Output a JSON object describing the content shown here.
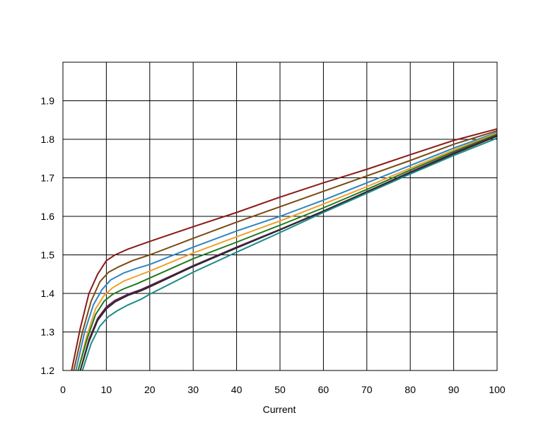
{
  "chart_data": {
    "type": "line",
    "title": "",
    "xlabel": "Current",
    "ylabel": "",
    "xlim": [
      0,
      100
    ],
    "ylim": [
      1.2,
      2.0
    ],
    "xticks": [
      0,
      10,
      20,
      30,
      40,
      50,
      60,
      70,
      80,
      90,
      100
    ],
    "yticks": [
      1.2,
      1.3,
      1.4,
      1.5,
      1.6,
      1.7,
      1.8,
      1.9
    ],
    "ytick_labels": [
      "1.2",
      "1.3",
      "1.4",
      "1.5",
      "1.6",
      "1.7",
      "1.8",
      "1.9"
    ],
    "xtick_labels": [
      "0",
      "10",
      "20",
      "30",
      "40",
      "50",
      "60",
      "70",
      "80",
      "90",
      "100"
    ],
    "grid": true,
    "legend": "none",
    "series": [
      {
        "color": "#8B1A1A",
        "x": [
          2,
          4,
          6,
          8,
          10,
          12,
          15,
          20,
          30,
          40,
          50,
          60,
          70,
          80,
          90,
          100
        ],
        "values": [
          1.2,
          1.31,
          1.4,
          1.45,
          1.485,
          1.5,
          1.515,
          1.535,
          1.573,
          1.61,
          1.65,
          1.687,
          1.722,
          1.76,
          1.797,
          1.827
        ]
      },
      {
        "color": "#7B4A12",
        "x": [
          2.5,
          4.5,
          6.5,
          8.5,
          10.5,
          13,
          16,
          20,
          30,
          40,
          50,
          60,
          70,
          80,
          90,
          100
        ],
        "values": [
          1.2,
          1.3,
          1.38,
          1.43,
          1.455,
          1.47,
          1.485,
          1.5,
          1.543,
          1.585,
          1.625,
          1.665,
          1.705,
          1.745,
          1.787,
          1.822
        ]
      },
      {
        "color": "#2E86C1",
        "x": [
          3,
          5,
          7,
          9,
          11,
          14,
          17,
          20,
          30,
          40,
          50,
          60,
          70,
          80,
          90,
          100
        ],
        "values": [
          1.2,
          1.3,
          1.37,
          1.41,
          1.435,
          1.453,
          1.465,
          1.475,
          1.52,
          1.562,
          1.6,
          1.642,
          1.687,
          1.732,
          1.777,
          1.818
        ]
      },
      {
        "color": "#F0A030",
        "x": [
          3.5,
          5.5,
          7.5,
          9.5,
          11.5,
          14,
          17,
          20,
          30,
          40,
          50,
          60,
          70,
          80,
          90,
          100
        ],
        "values": [
          1.2,
          1.29,
          1.36,
          1.395,
          1.415,
          1.432,
          1.445,
          1.458,
          1.505,
          1.547,
          1.588,
          1.632,
          1.677,
          1.725,
          1.772,
          1.816
        ]
      },
      {
        "color": "#1E7A1E",
        "x": [
          3.5,
          5.5,
          7.5,
          9.5,
          11.5,
          14,
          17,
          20,
          30,
          40,
          50,
          60,
          70,
          80,
          90,
          100
        ],
        "values": [
          1.2,
          1.28,
          1.345,
          1.38,
          1.398,
          1.412,
          1.425,
          1.44,
          1.49,
          1.533,
          1.577,
          1.622,
          1.67,
          1.72,
          1.768,
          1.813
        ]
      },
      {
        "color": "#6B1A5A",
        "x": [
          4,
          6,
          8,
          10,
          12,
          15,
          18,
          20,
          30,
          40,
          50,
          60,
          70,
          80,
          90,
          100
        ],
        "values": [
          1.2,
          1.28,
          1.335,
          1.365,
          1.382,
          1.398,
          1.41,
          1.42,
          1.472,
          1.52,
          1.566,
          1.614,
          1.664,
          1.715,
          1.764,
          1.81
        ]
      },
      {
        "color": "#2A2A2A",
        "x": [
          4,
          6,
          8,
          10,
          12,
          15,
          18,
          20,
          30,
          40,
          50,
          60,
          70,
          80,
          90,
          100
        ],
        "values": [
          1.2,
          1.275,
          1.33,
          1.36,
          1.378,
          1.395,
          1.407,
          1.417,
          1.47,
          1.518,
          1.565,
          1.613,
          1.663,
          1.713,
          1.762,
          1.808
        ]
      },
      {
        "color": "#1E8A8A",
        "x": [
          4.5,
          6.5,
          8.5,
          10.5,
          12.5,
          15,
          18,
          20,
          30,
          40,
          50,
          60,
          70,
          80,
          90,
          100
        ],
        "values": [
          1.2,
          1.27,
          1.315,
          1.34,
          1.355,
          1.37,
          1.385,
          1.398,
          1.455,
          1.507,
          1.558,
          1.61,
          1.66,
          1.71,
          1.758,
          1.803
        ]
      }
    ]
  }
}
